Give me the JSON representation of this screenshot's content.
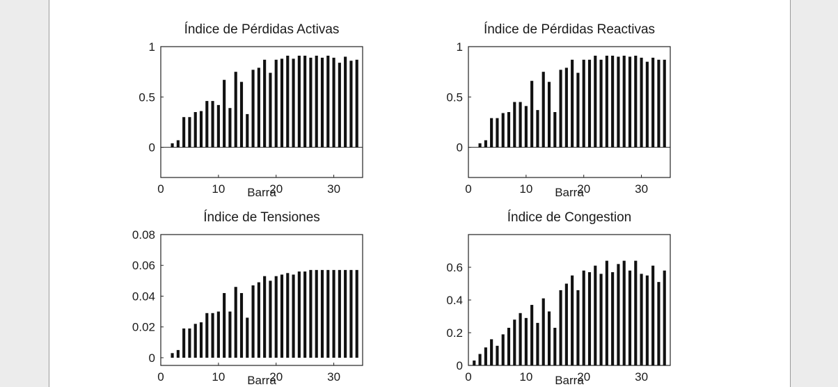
{
  "chart_data": [
    {
      "type": "bar",
      "title": "Índice de Pérdidas Activas",
      "xlabel": "Barra",
      "ylabel": "",
      "xlim": [
        0,
        35
      ],
      "ylim": [
        -0.3,
        1
      ],
      "xticks": [
        0,
        10,
        20,
        30
      ],
      "yticks": [
        0,
        0.5,
        1
      ],
      "ytick_labels": [
        "0",
        "0.5",
        "1"
      ],
      "grid": false,
      "zero_line": true,
      "x": [
        2,
        3,
        4,
        5,
        6,
        7,
        8,
        9,
        10,
        11,
        12,
        13,
        14,
        15,
        16,
        17,
        18,
        19,
        20,
        21,
        22,
        23,
        24,
        25,
        26,
        27,
        28,
        29,
        30,
        31,
        32,
        33,
        34
      ],
      "values": [
        0.04,
        0.07,
        0.3,
        0.3,
        0.35,
        0.36,
        0.46,
        0.46,
        0.42,
        0.67,
        0.39,
        0.75,
        0.65,
        0.33,
        0.77,
        0.79,
        0.87,
        0.74,
        0.87,
        0.88,
        0.91,
        0.88,
        0.91,
        0.91,
        0.89,
        0.91,
        0.89,
        0.91,
        0.89,
        0.84,
        0.9,
        0.86,
        0.87
      ]
    },
    {
      "type": "bar",
      "title": "Índice de Pérdidas Reactivas",
      "xlabel": "Barra",
      "ylabel": "",
      "xlim": [
        0,
        35
      ],
      "ylim": [
        -0.3,
        1
      ],
      "xticks": [
        0,
        10,
        20,
        30
      ],
      "yticks": [
        0,
        0.5,
        1
      ],
      "ytick_labels": [
        "0",
        "0.5",
        "1"
      ],
      "grid": false,
      "zero_line": true,
      "x": [
        2,
        3,
        4,
        5,
        6,
        7,
        8,
        9,
        10,
        11,
        12,
        13,
        14,
        15,
        16,
        17,
        18,
        19,
        20,
        21,
        22,
        23,
        24,
        25,
        26,
        27,
        28,
        29,
        30,
        31,
        32,
        33,
        34
      ],
      "values": [
        0.04,
        0.07,
        0.29,
        0.29,
        0.34,
        0.35,
        0.45,
        0.45,
        0.41,
        0.66,
        0.37,
        0.75,
        0.65,
        0.35,
        0.77,
        0.79,
        0.87,
        0.74,
        0.87,
        0.87,
        0.91,
        0.87,
        0.91,
        0.91,
        0.9,
        0.91,
        0.9,
        0.91,
        0.89,
        0.85,
        0.89,
        0.87,
        0.87
      ]
    },
    {
      "type": "bar",
      "title": "Índice de Tensiones",
      "xlabel": "Barra",
      "ylabel": "",
      "xlim": [
        0,
        35
      ],
      "ylim": [
        -0.005,
        0.08
      ],
      "xticks": [
        0,
        10,
        20,
        30
      ],
      "yticks": [
        0,
        0.02,
        0.04,
        0.06,
        0.08
      ],
      "ytick_labels": [
        "0",
        "0.02",
        "0.04",
        "0.06",
        "0.08"
      ],
      "grid": false,
      "zero_line": false,
      "x": [
        2,
        3,
        4,
        5,
        6,
        7,
        8,
        9,
        10,
        11,
        12,
        13,
        14,
        15,
        16,
        17,
        18,
        19,
        20,
        21,
        22,
        23,
        24,
        25,
        26,
        27,
        28,
        29,
        30,
        31,
        32,
        33,
        34
      ],
      "values": [
        0.003,
        0.005,
        0.019,
        0.019,
        0.022,
        0.023,
        0.029,
        0.029,
        0.03,
        0.042,
        0.03,
        0.046,
        0.042,
        0.026,
        0.047,
        0.049,
        0.053,
        0.05,
        0.053,
        0.054,
        0.055,
        0.054,
        0.056,
        0.056,
        0.057,
        0.057,
        0.057,
        0.057,
        0.057,
        0.057,
        0.057,
        0.057,
        0.057
      ]
    },
    {
      "type": "bar",
      "title": "Índice de Congestion",
      "xlabel": "Barra",
      "ylabel": "",
      "xlim": [
        0,
        35
      ],
      "ylim": [
        0,
        0.8
      ],
      "xticks": [
        0,
        10,
        20,
        30
      ],
      "yticks": [
        0,
        0.2,
        0.4,
        0.6
      ],
      "ytick_labels": [
        "0",
        "0.2",
        "0.4",
        "0.6"
      ],
      "grid": false,
      "zero_line": false,
      "x": [
        1,
        2,
        3,
        4,
        5,
        6,
        7,
        8,
        9,
        10,
        11,
        12,
        13,
        14,
        15,
        16,
        17,
        18,
        19,
        20,
        21,
        22,
        23,
        24,
        25,
        26,
        27,
        28,
        29,
        30,
        31,
        32,
        33,
        34
      ],
      "values": [
        0.03,
        0.07,
        0.11,
        0.16,
        0.12,
        0.19,
        0.23,
        0.28,
        0.32,
        0.29,
        0.37,
        0.26,
        0.41,
        0.33,
        0.23,
        0.46,
        0.5,
        0.55,
        0.46,
        0.58,
        0.57,
        0.61,
        0.56,
        0.64,
        0.57,
        0.62,
        0.64,
        0.58,
        0.64,
        0.56,
        0.55,
        0.61,
        0.51,
        0.58
      ]
    }
  ]
}
